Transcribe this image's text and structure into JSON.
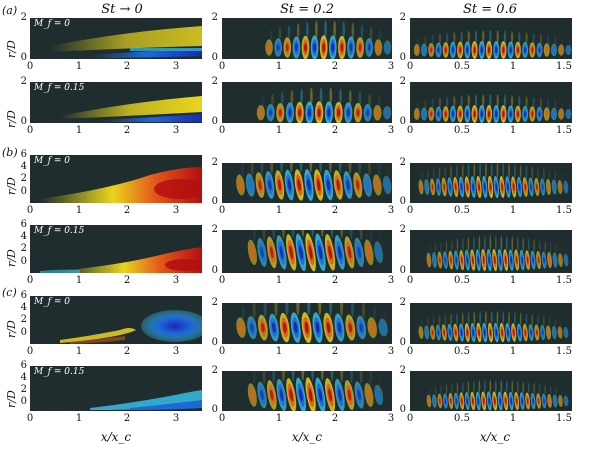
{
  "figure": {
    "column_titles": [
      "St → 0",
      "St = 0.2",
      "St = 0.6"
    ],
    "row_labels": [
      "(a)",
      "(b)",
      "(c)"
    ],
    "x_axis_label": "x/x_c",
    "y_axis_label": "r/D",
    "mach_labels": [
      "M_f = 0",
      "M_f = 0.15"
    ],
    "col0_xticks": [
      "0",
      "1",
      "2",
      "3"
    ],
    "col1_xticks": [
      "0",
      "1",
      "2",
      "3"
    ],
    "col2_xticks": [
      "0",
      "0.5",
      "1",
      "1.5"
    ],
    "a_col0_yticks": [
      "0",
      "2"
    ],
    "bc_col0_yticks": [
      "0",
      "2",
      "4",
      "6"
    ],
    "col12_yticks": [
      "0",
      "2"
    ],
    "colors": {
      "background": "#1f2d2e",
      "positive_high": "#b40f0f",
      "positive_mid": "#e35b1a",
      "positive_low": "#e8d51e",
      "negative_low": "#36c0e6",
      "negative_mid": "#1e69d8",
      "negative_high": "#1a2bb0"
    }
  }
}
